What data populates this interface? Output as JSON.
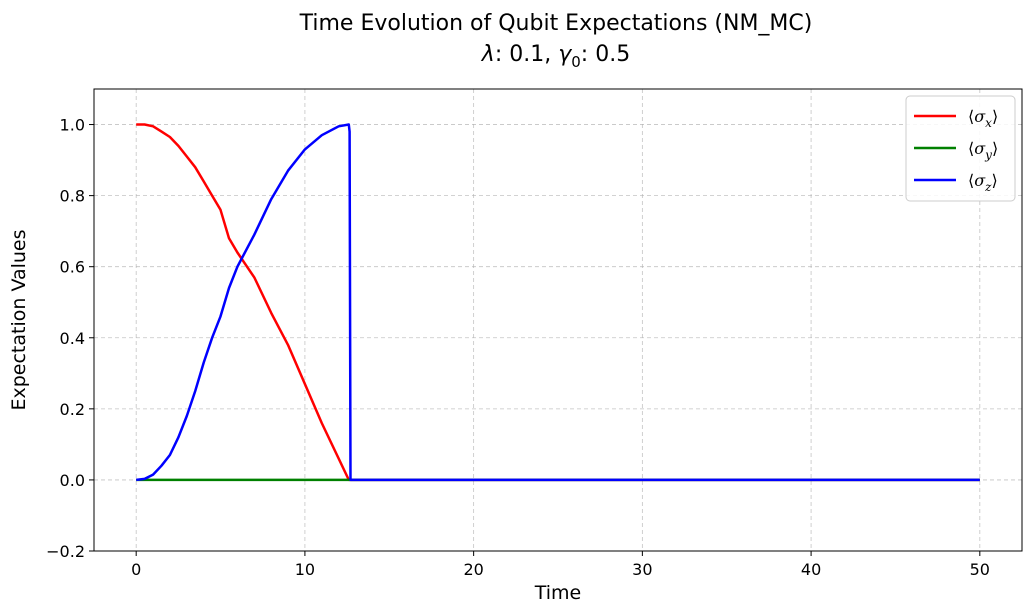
{
  "chart_data": {
    "type": "line",
    "title": "Time Evolution of Qubit Expectations (NM_MC)",
    "subtitle": {
      "lambda_symbol": "λ",
      "lambda_value": ": 0.1, ",
      "gamma_symbol": "γ",
      "gamma_sub": "0",
      "gamma_value": ": 0.5"
    },
    "xlabel": "Time",
    "ylabel": "Expectation Values",
    "xlim": [
      -2.5,
      52.5
    ],
    "ylim": [
      -0.2,
      1.1
    ],
    "xticks": [
      0,
      10,
      20,
      30,
      40,
      50
    ],
    "yticks": [
      -0.2,
      0.0,
      0.2,
      0.4,
      0.6,
      0.8,
      1.0
    ],
    "ytick_labels": [
      "−0.2",
      "0.0",
      "0.2",
      "0.4",
      "0.6",
      "0.8",
      "1.0"
    ],
    "grid": true,
    "legend_position": "top-right",
    "series": [
      {
        "name": "⟨σx⟩",
        "label_main": "σ",
        "label_sub": "x",
        "color": "#ff0000",
        "x": [
          0,
          0.5,
          1,
          1.5,
          2,
          2.5,
          3,
          3.5,
          4,
          4.5,
          5,
          5.5,
          6,
          7,
          8,
          9,
          10,
          11,
          12,
          12.6,
          12.7,
          50
        ],
        "y": [
          1.0,
          1.0,
          0.995,
          0.98,
          0.965,
          0.94,
          0.91,
          0.88,
          0.84,
          0.8,
          0.76,
          0.68,
          0.64,
          0.57,
          0.47,
          0.38,
          0.27,
          0.16,
          0.06,
          0.0,
          0.0,
          0.0
        ]
      },
      {
        "name": "⟨σy⟩",
        "label_main": "σ",
        "label_sub": "y",
        "color": "#008000",
        "x": [
          0,
          50
        ],
        "y": [
          0.0,
          0.0
        ]
      },
      {
        "name": "⟨σz⟩",
        "label_main": "σ",
        "label_sub": "z",
        "color": "#0000ff",
        "x": [
          0,
          0.5,
          1,
          1.5,
          2,
          2.5,
          3,
          3.5,
          4,
          4.5,
          5,
          5.5,
          6,
          7,
          8,
          9,
          10,
          11,
          12,
          12.6,
          12.65,
          12.7,
          50
        ],
        "y": [
          0.0,
          0.003,
          0.015,
          0.04,
          0.07,
          0.12,
          0.18,
          0.25,
          0.33,
          0.4,
          0.46,
          0.54,
          0.6,
          0.69,
          0.79,
          0.87,
          0.93,
          0.97,
          0.995,
          1.0,
          0.98,
          0.0,
          0.0
        ]
      }
    ]
  }
}
